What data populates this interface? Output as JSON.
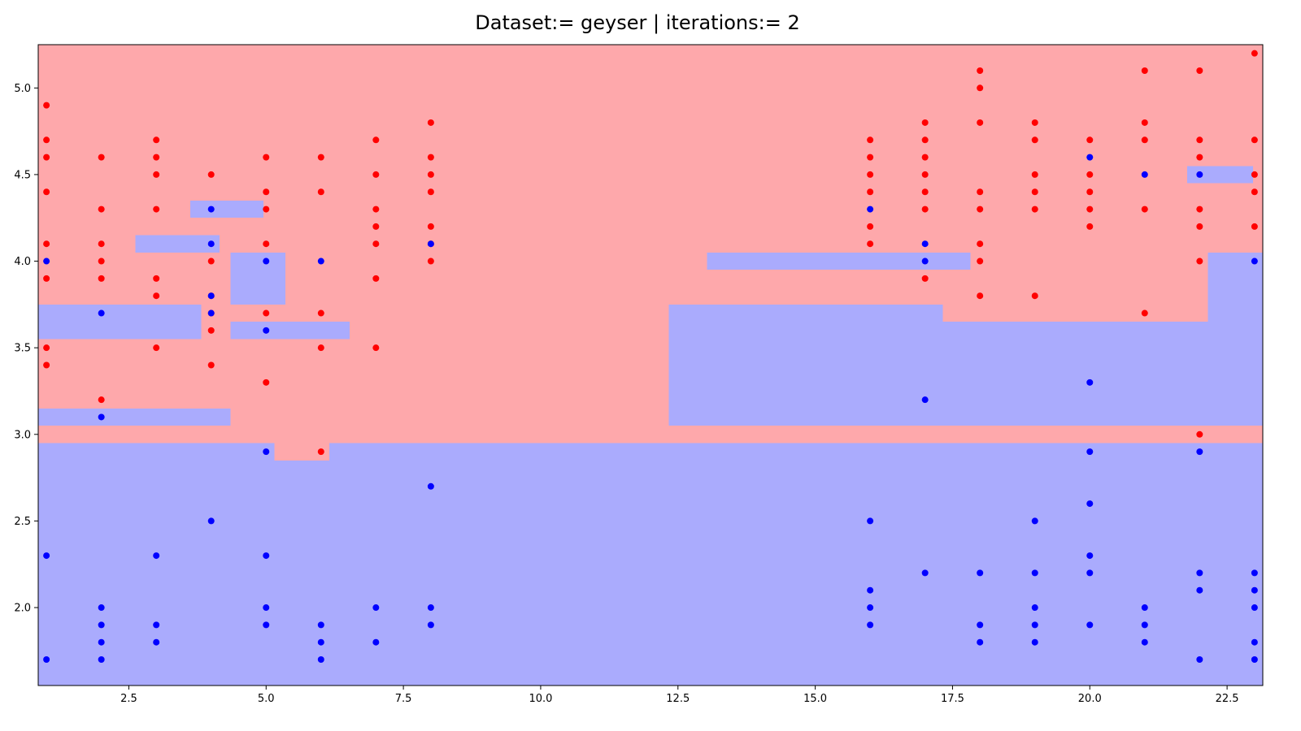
{
  "chart_data": {
    "type": "scatter",
    "title": "Dataset:= geyser  |  iterations:= 2",
    "xlim": [
      0.85,
      23.15
    ],
    "ylim": [
      1.55,
      5.25
    ],
    "x_ticks": [
      2.5,
      5.0,
      7.5,
      10.0,
      12.5,
      15.0,
      17.5,
      20.0,
      22.5
    ],
    "y_ticks": [
      2.0,
      2.5,
      3.0,
      3.5,
      4.0,
      4.5,
      5.0
    ],
    "grid": false,
    "colors": {
      "region_red": "#fea8ab",
      "region_blue": "#aaabfd",
      "point_red": "#ff0000",
      "point_blue": "#0000ff",
      "frame": "#000000"
    },
    "regions": [
      {
        "class": "red",
        "x0": 0.85,
        "x1": 23.15,
        "y0": 1.55,
        "y1": 5.25
      },
      {
        "class": "blue",
        "x0": 0.85,
        "x1": 23.15,
        "y0": 1.55,
        "y1": 2.95
      },
      {
        "class": "red",
        "x0": 5.15,
        "x1": 6.15,
        "y0": 2.85,
        "y1": 2.95
      },
      {
        "class": "blue",
        "x0": 0.85,
        "x1": 4.35,
        "y0": 3.05,
        "y1": 3.15
      },
      {
        "class": "blue",
        "x0": 0.85,
        "x1": 3.82,
        "y0": 3.55,
        "y1": 3.75
      },
      {
        "class": "blue",
        "x0": 4.35,
        "x1": 6.52,
        "y0": 3.55,
        "y1": 3.65
      },
      {
        "class": "blue",
        "x0": 4.35,
        "x1": 5.35,
        "y0": 3.75,
        "y1": 4.05
      },
      {
        "class": "blue",
        "x0": 2.62,
        "x1": 4.15,
        "y0": 4.05,
        "y1": 4.15
      },
      {
        "class": "blue",
        "x0": 3.62,
        "x1": 4.95,
        "y0": 4.25,
        "y1": 4.35
      },
      {
        "class": "blue",
        "x0": 12.33,
        "x1": 23.15,
        "y0": 3.05,
        "y1": 3.65
      },
      {
        "class": "blue",
        "x0": 12.33,
        "x1": 17.32,
        "y0": 3.65,
        "y1": 3.75
      },
      {
        "class": "blue",
        "x0": 13.03,
        "x1": 17.83,
        "y0": 3.95,
        "y1": 4.05
      },
      {
        "class": "blue",
        "x0": 22.15,
        "x1": 23.15,
        "y0": 3.65,
        "y1": 4.05
      },
      {
        "class": "blue",
        "x0": 21.77,
        "x1": 22.97,
        "y0": 4.45,
        "y1": 4.55
      }
    ],
    "series": [
      {
        "class": "red",
        "points": [
          [
            1,
            4.9
          ],
          [
            1,
            4.7
          ],
          [
            1,
            4.6
          ],
          [
            1,
            4.4
          ],
          [
            1,
            4.1
          ],
          [
            1,
            3.9
          ],
          [
            1,
            3.5
          ],
          [
            1,
            3.4
          ],
          [
            2,
            4.6
          ],
          [
            2,
            4.3
          ],
          [
            2,
            4.1
          ],
          [
            2,
            4.0
          ],
          [
            2,
            3.9
          ],
          [
            2,
            3.2
          ],
          [
            3,
            4.7
          ],
          [
            3,
            4.6
          ],
          [
            3,
            4.5
          ],
          [
            3,
            4.3
          ],
          [
            3,
            3.9
          ],
          [
            3,
            3.8
          ],
          [
            3,
            3.5
          ],
          [
            4,
            4.5
          ],
          [
            4,
            4.0
          ],
          [
            4,
            3.8
          ],
          [
            4,
            3.7
          ],
          [
            4,
            3.6
          ],
          [
            4,
            3.4
          ],
          [
            5,
            4.6
          ],
          [
            5,
            4.4
          ],
          [
            5,
            4.3
          ],
          [
            5,
            4.1
          ],
          [
            5,
            3.7
          ],
          [
            5,
            3.3
          ],
          [
            6,
            4.6
          ],
          [
            6,
            4.4
          ],
          [
            6,
            3.7
          ],
          [
            6,
            3.5
          ],
          [
            6,
            2.9
          ],
          [
            7,
            4.7
          ],
          [
            7,
            4.5
          ],
          [
            7,
            4.3
          ],
          [
            7,
            4.2
          ],
          [
            7,
            4.1
          ],
          [
            7,
            3.9
          ],
          [
            7,
            3.5
          ],
          [
            8,
            4.8
          ],
          [
            8,
            4.6
          ],
          [
            8,
            4.5
          ],
          [
            8,
            4.4
          ],
          [
            8,
            4.2
          ],
          [
            8,
            4.1
          ],
          [
            8,
            4.0
          ],
          [
            16,
            4.7
          ],
          [
            16,
            4.6
          ],
          [
            16,
            4.5
          ],
          [
            16,
            4.4
          ],
          [
            16,
            4.2
          ],
          [
            16,
            4.1
          ],
          [
            17,
            4.8
          ],
          [
            17,
            4.7
          ],
          [
            17,
            4.6
          ],
          [
            17,
            4.5
          ],
          [
            17,
            4.4
          ],
          [
            17,
            4.3
          ],
          [
            17,
            3.9
          ],
          [
            18,
            5.1
          ],
          [
            18,
            5.0
          ],
          [
            18,
            4.8
          ],
          [
            18,
            4.4
          ],
          [
            18,
            4.3
          ],
          [
            18,
            4.1
          ],
          [
            18,
            4.0
          ],
          [
            18,
            3.8
          ],
          [
            19,
            4.8
          ],
          [
            19,
            4.7
          ],
          [
            19,
            4.5
          ],
          [
            19,
            4.4
          ],
          [
            19,
            4.3
          ],
          [
            19,
            3.8
          ],
          [
            20,
            4.7
          ],
          [
            20,
            4.5
          ],
          [
            20,
            4.4
          ],
          [
            20,
            4.3
          ],
          [
            20,
            4.2
          ],
          [
            21,
            5.1
          ],
          [
            21,
            4.8
          ],
          [
            21,
            4.7
          ],
          [
            21,
            4.3
          ],
          [
            21,
            3.7
          ],
          [
            22,
            5.1
          ],
          [
            22,
            4.7
          ],
          [
            22,
            4.6
          ],
          [
            22,
            4.3
          ],
          [
            22,
            4.2
          ],
          [
            22,
            4.0
          ],
          [
            22,
            3.0
          ],
          [
            23,
            5.2
          ],
          [
            23,
            4.7
          ],
          [
            23,
            4.5
          ],
          [
            23,
            4.4
          ],
          [
            23,
            4.2
          ]
        ]
      },
      {
        "class": "blue",
        "points": [
          [
            1,
            4.0
          ],
          [
            1,
            2.3
          ],
          [
            1,
            1.7
          ],
          [
            2,
            3.7
          ],
          [
            2,
            3.1
          ],
          [
            2,
            2.0
          ],
          [
            2,
            1.9
          ],
          [
            2,
            1.8
          ],
          [
            2,
            1.7
          ],
          [
            3,
            2.3
          ],
          [
            3,
            1.9
          ],
          [
            3,
            1.8
          ],
          [
            4,
            4.3
          ],
          [
            4,
            4.1
          ],
          [
            4,
            3.8
          ],
          [
            4,
            3.7
          ],
          [
            4,
            2.5
          ],
          [
            5,
            4.0
          ],
          [
            5,
            3.6
          ],
          [
            5,
            2.9
          ],
          [
            5,
            2.3
          ],
          [
            5,
            2.0
          ],
          [
            5,
            1.9
          ],
          [
            6,
            4.0
          ],
          [
            6,
            1.9
          ],
          [
            6,
            1.8
          ],
          [
            6,
            1.7
          ],
          [
            7,
            2.0
          ],
          [
            7,
            1.8
          ],
          [
            8,
            4.1
          ],
          [
            8,
            2.7
          ],
          [
            8,
            2.0
          ],
          [
            8,
            1.9
          ],
          [
            16,
            4.3
          ],
          [
            16,
            2.5
          ],
          [
            16,
            2.1
          ],
          [
            16,
            2.0
          ],
          [
            16,
            1.9
          ],
          [
            17,
            4.1
          ],
          [
            17,
            4.0
          ],
          [
            17,
            3.2
          ],
          [
            17,
            2.2
          ],
          [
            18,
            2.2
          ],
          [
            18,
            1.9
          ],
          [
            18,
            1.8
          ],
          [
            19,
            2.5
          ],
          [
            19,
            2.2
          ],
          [
            19,
            2.0
          ],
          [
            19,
            1.9
          ],
          [
            19,
            1.8
          ],
          [
            20,
            4.6
          ],
          [
            20,
            3.3
          ],
          [
            20,
            2.9
          ],
          [
            20,
            2.6
          ],
          [
            20,
            2.3
          ],
          [
            20,
            2.2
          ],
          [
            20,
            1.9
          ],
          [
            21,
            4.5
          ],
          [
            21,
            2.0
          ],
          [
            21,
            1.9
          ],
          [
            21,
            1.8
          ],
          [
            22,
            4.5
          ],
          [
            22,
            2.9
          ],
          [
            22,
            2.2
          ],
          [
            22,
            2.1
          ],
          [
            22,
            1.7
          ],
          [
            23,
            4.0
          ],
          [
            23,
            2.2
          ],
          [
            23,
            2.1
          ],
          [
            23,
            2.0
          ],
          [
            23,
            1.8
          ],
          [
            23,
            1.7
          ]
        ]
      }
    ]
  }
}
